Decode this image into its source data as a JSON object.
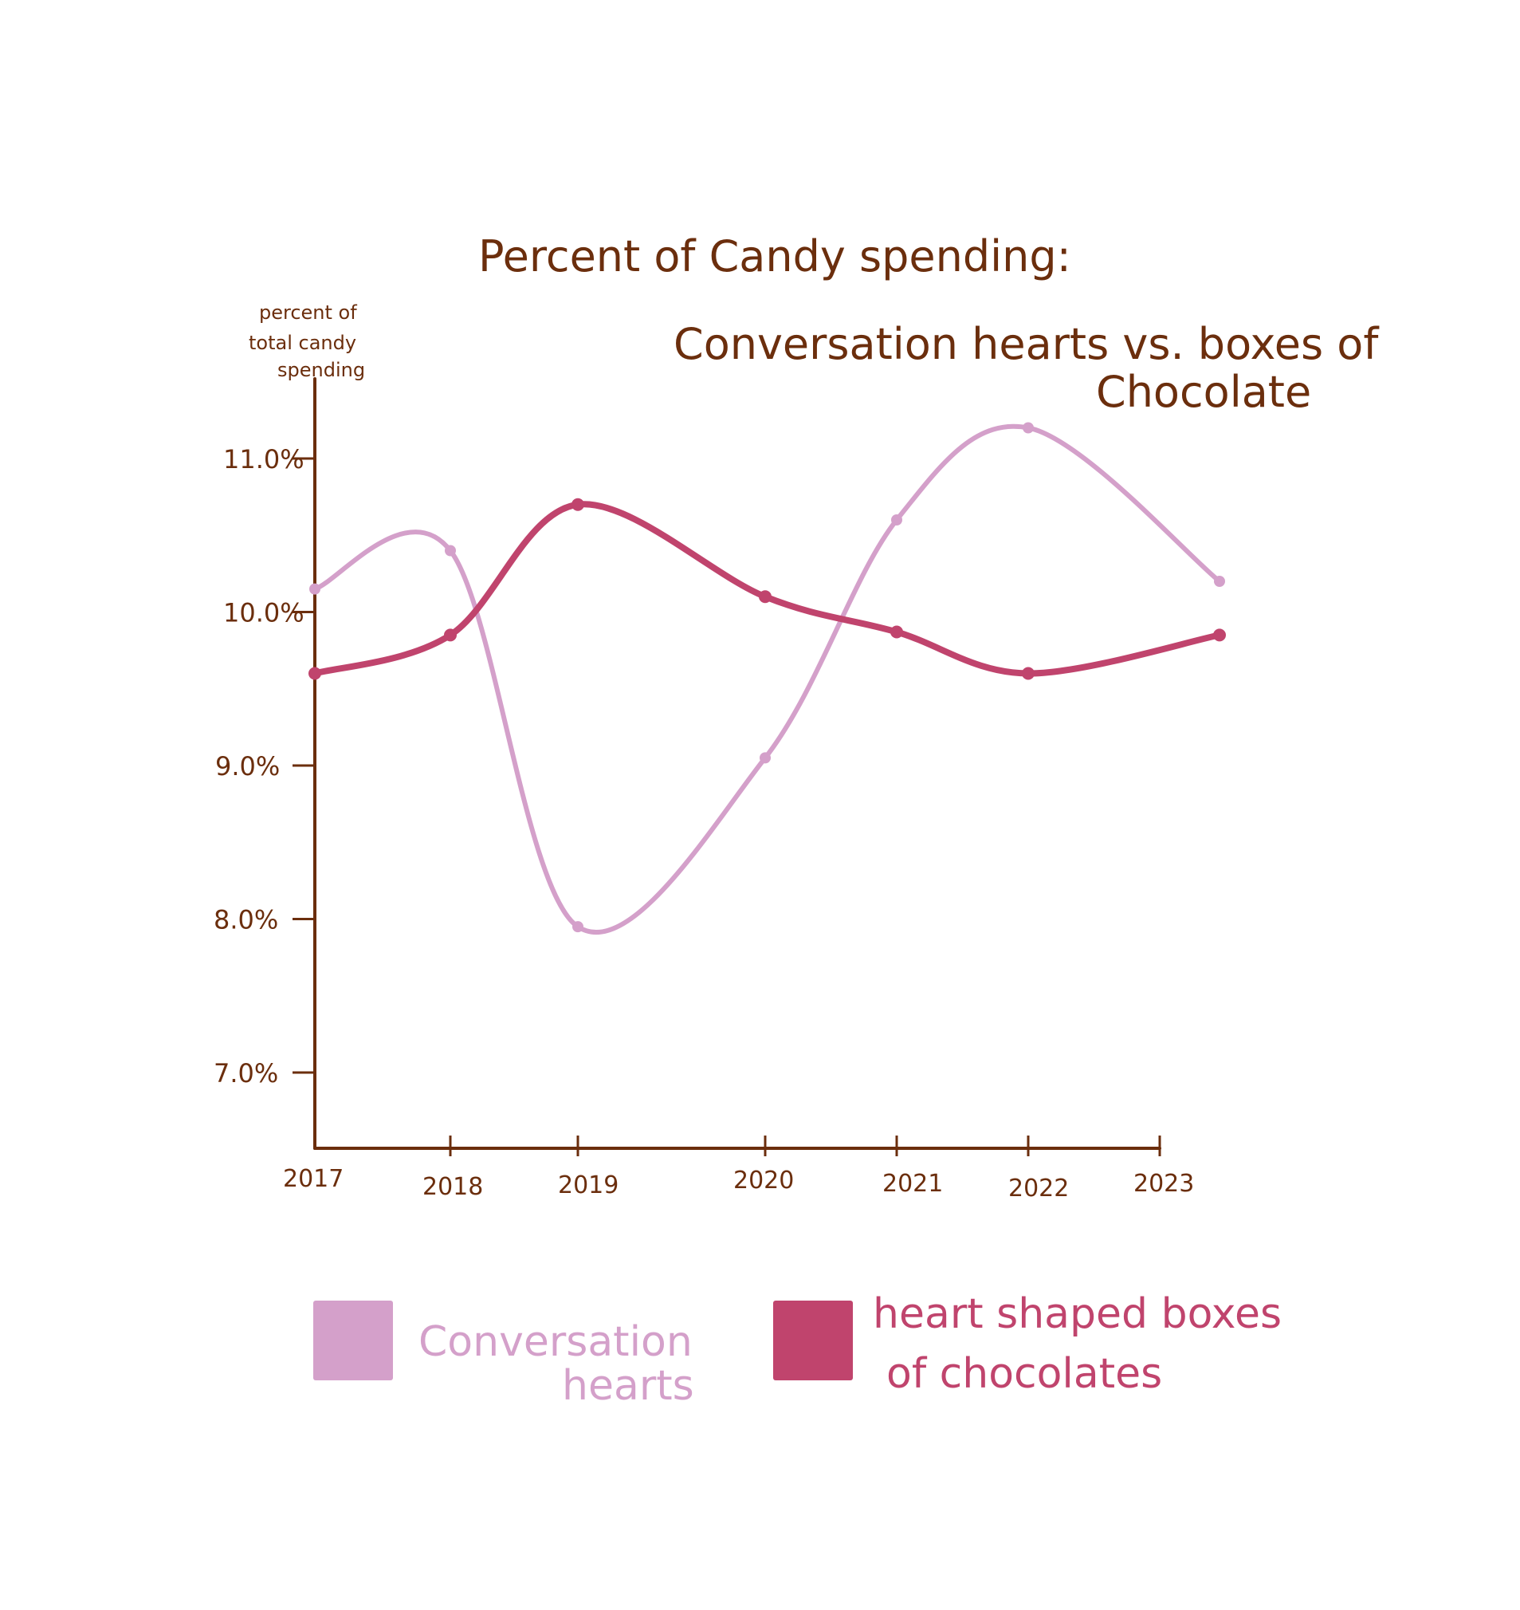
{
  "chart_data": {
    "type": "line",
    "title_line1": "Percent of Candy spending:",
    "title_line2": "Conversation hearts vs. boxes of",
    "title_line3": "Chocolate",
    "ylabel_lines": [
      "percent of",
      "total candy",
      "spending"
    ],
    "x": [
      "2017",
      "2018",
      "2019",
      "2020",
      "2021",
      "2022",
      "2023"
    ],
    "y_ticks": [
      "11.0%",
      "10.0%",
      "9.0%",
      "8.0%",
      "7.0%"
    ],
    "ylim": [
      6.5,
      11.5
    ],
    "grid": false,
    "legend_position": "bottom",
    "series": [
      {
        "name": "Conversation hearts",
        "legend_lines": [
          "Conversation",
          "hearts"
        ],
        "color": "#d4a0ca",
        "values": [
          10.15,
          10.4,
          7.95,
          9.05,
          10.6,
          11.2,
          10.2
        ]
      },
      {
        "name": "heart shaped boxes of chocolates",
        "legend_lines": [
          "heart shaped boxes",
          "of chocolates"
        ],
        "color": "#c0446d",
        "values": [
          9.6,
          9.85,
          10.7,
          10.1,
          9.87,
          9.6,
          9.85
        ]
      }
    ],
    "axis_color": "#6b2e0d"
  }
}
